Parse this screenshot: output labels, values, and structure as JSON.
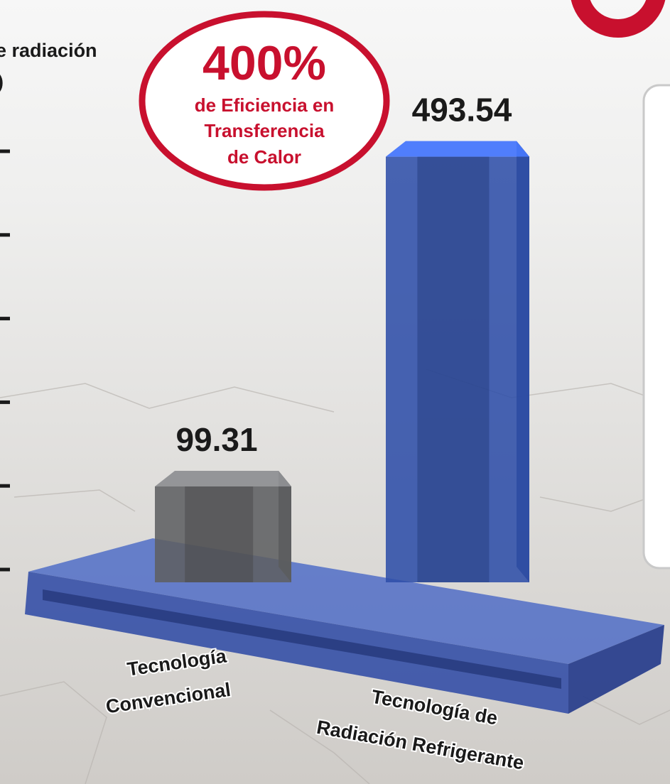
{
  "chart_data": {
    "type": "bar3d",
    "y_label": [
      "e radiación",
      ")"
    ],
    "annotation": {
      "headline": "400%",
      "lines": [
        "de Eficiencia en",
        "Transferencia",
        "de Calor"
      ]
    },
    "categories": [
      [
        "Tecnología",
        "Convencional"
      ],
      [
        "Tecnología de",
        "Radiación Refrigerante"
      ]
    ],
    "values": [
      99.31,
      493.54
    ],
    "colors": [
      "#5f6062",
      "#2f4fa8"
    ],
    "ylim": [
      0,
      500
    ],
    "yticks": [
      0,
      100,
      200,
      300,
      400,
      500
    ]
  }
}
